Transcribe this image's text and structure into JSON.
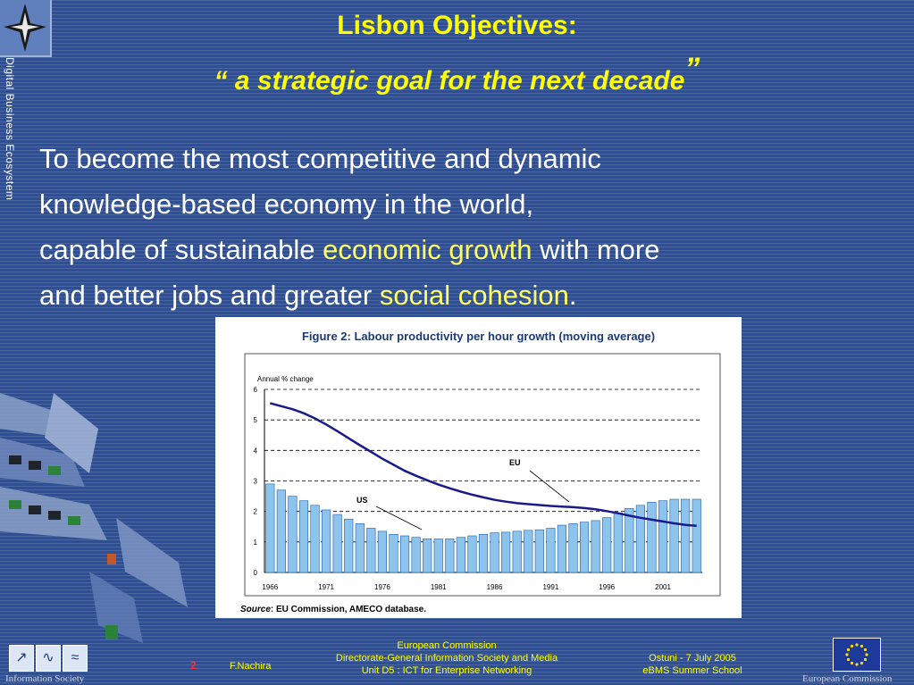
{
  "sidebar": {
    "vertical_label": "Digital Business Ecosystem"
  },
  "title": {
    "line1": "Lisbon Objectives:",
    "line2_open": "“ a strategic goal for the next decade",
    "line2_close": "”"
  },
  "body": {
    "line1": "To become the most competitive and dynamic",
    "line2": "knowledge-based economy in the world,",
    "line3_a": "capable of sustainable ",
    "line3_hl": "economic growth",
    "line3_b": " with more",
    "line4_a": "and better jobs and greater ",
    "line4_hl": "social cohesion",
    "line4_b": "."
  },
  "figure": {
    "title": "Figure 2: Labour productivity per hour growth (moving average)",
    "source_label": "Source",
    "source_text": ": EU Commission, AMECO database."
  },
  "chart_data": {
    "type": "bar",
    "ylabel": "Annual % change",
    "ylim": [
      0,
      6
    ],
    "yticks": [
      "0",
      "1",
      "2",
      "3",
      "4",
      "5",
      "6"
    ],
    "xticks": [
      "1966",
      "1971",
      "1976",
      "1981",
      "1986",
      "1991",
      "1996",
      "2001"
    ],
    "categories": [
      "1966",
      "1967",
      "1968",
      "1969",
      "1970",
      "1971",
      "1972",
      "1973",
      "1974",
      "1975",
      "1976",
      "1977",
      "1978",
      "1979",
      "1980",
      "1981",
      "1982",
      "1983",
      "1984",
      "1985",
      "1986",
      "1987",
      "1988",
      "1989",
      "1990",
      "1991",
      "1992",
      "1993",
      "1994",
      "1995",
      "1996",
      "1997",
      "1998",
      "1999",
      "2000",
      "2001",
      "2002",
      "2003",
      "2004"
    ],
    "series": [
      {
        "name": "US",
        "kind": "bar",
        "color": "#8cc4ee",
        "values": [
          2.9,
          2.7,
          2.5,
          2.35,
          2.2,
          2.05,
          1.9,
          1.75,
          1.6,
          1.45,
          1.35,
          1.25,
          1.2,
          1.15,
          1.1,
          1.1,
          1.1,
          1.15,
          1.2,
          1.25,
          1.3,
          1.32,
          1.35,
          1.38,
          1.4,
          1.45,
          1.55,
          1.6,
          1.65,
          1.7,
          1.8,
          1.95,
          2.1,
          2.2,
          2.3,
          2.35,
          2.4,
          2.4,
          2.4
        ]
      },
      {
        "name": "EU",
        "kind": "line",
        "color": "#1a1a8c",
        "values": [
          5.55,
          5.45,
          5.35,
          5.22,
          5.05,
          4.85,
          4.63,
          4.4,
          4.17,
          3.95,
          3.73,
          3.53,
          3.33,
          3.17,
          3.02,
          2.88,
          2.76,
          2.65,
          2.55,
          2.46,
          2.38,
          2.32,
          2.27,
          2.24,
          2.21,
          2.18,
          2.16,
          2.14,
          2.11,
          2.07,
          2.01,
          1.94,
          1.86,
          1.79,
          1.73,
          1.67,
          1.61,
          1.56,
          1.53
        ]
      }
    ],
    "annotations": [
      "EU",
      "US"
    ]
  },
  "footer": {
    "page_number": "2",
    "author": "F.Nachira",
    "center_line1": "European Commission",
    "center_line2": "Directorate-General Information Society and Media",
    "center_line3": "Unit D5 : ICT for Enterprise Networking",
    "right_line1": "Ostuni - 7 July 2005",
    "right_line2": "eBMS Summer School",
    "left_org": "Information Society",
    "right_org": "European Commission"
  }
}
